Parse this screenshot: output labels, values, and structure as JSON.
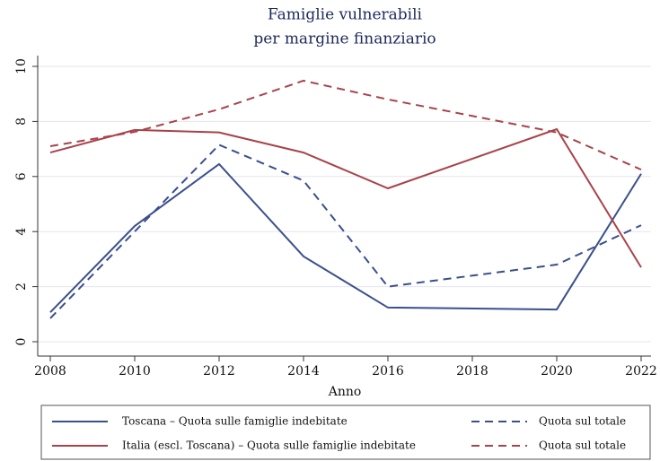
{
  "chart_data": {
    "type": "line",
    "title": "Famiglie vulnerabili",
    "subtitle": "per margine finanziario",
    "x_label": "Anno",
    "x": [
      2008,
      2010,
      2012,
      2014,
      2016,
      2020,
      2022
    ],
    "series": [
      {
        "name": "Toscana – Quota sulle famiglie indebitate",
        "color": "#3b4f8c",
        "dashed": false,
        "values": [
          1.07,
          4.2,
          6.45,
          3.1,
          1.24,
          1.17,
          6.1
        ]
      },
      {
        "name": "Quota sul totale",
        "color": "#3b4f8c",
        "dashed": true,
        "values": [
          0.85,
          4.0,
          7.15,
          5.85,
          2.0,
          2.8,
          4.23
        ]
      },
      {
        "name": "Italia (escl. Toscana) – Quota sulle famiglie indebitate",
        "color": "#a8434b",
        "dashed": false,
        "values": [
          6.87,
          7.69,
          7.6,
          6.87,
          5.57,
          7.72,
          2.7
        ]
      },
      {
        "name": "Quota sul totale",
        "color": "#a8434b",
        "dashed": true,
        "values": [
          7.1,
          7.62,
          8.44,
          9.48,
          8.8,
          7.6,
          6.25
        ]
      }
    ],
    "xlim": [
      2008,
      2022
    ],
    "xticks": [
      2008,
      2010,
      2012,
      2014,
      2016,
      2018,
      2020,
      2022
    ],
    "ylim": [
      0,
      10
    ],
    "yticks": [
      0,
      2,
      4,
      6,
      8,
      10
    ],
    "grid": true,
    "legend": "bottom"
  }
}
